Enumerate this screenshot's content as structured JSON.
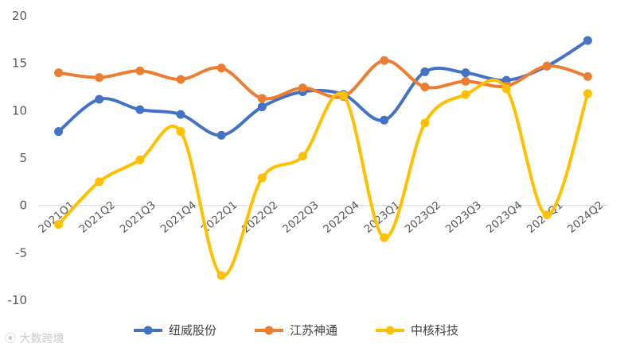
{
  "chart_data": {
    "type": "line",
    "title": "",
    "xlabel": "",
    "ylabel": "",
    "categories": [
      "2021Q1",
      "2021Q2",
      "2021Q3",
      "2021Q4",
      "2022Q1",
      "2022Q2",
      "2022Q3",
      "2022Q4",
      "2023Q1",
      "2023Q2",
      "2023Q3",
      "2023Q4",
      "2024Q1",
      "2024Q2"
    ],
    "ylim": [
      -10,
      20
    ],
    "yticks": [
      "20",
      "15",
      "10",
      "5",
      "0",
      "-5",
      "-10"
    ],
    "grid": "horizontal zero line only",
    "smooth": true,
    "legend_position": "bottom",
    "series": [
      {
        "name": "纽威股份",
        "color": "#4472C4",
        "values": [
          7.8,
          11.2,
          10.1,
          9.6,
          7.4,
          10.4,
          12.0,
          11.7,
          9.0,
          14.1,
          14.0,
          13.2,
          14.7,
          17.4
        ]
      },
      {
        "name": "江苏神通",
        "color": "#ED7D31",
        "values": [
          14.0,
          13.5,
          14.2,
          13.3,
          14.5,
          11.3,
          12.4,
          11.5,
          15.3,
          12.5,
          13.1,
          12.6,
          14.7,
          13.6
        ]
      },
      {
        "name": "中核科技",
        "color": "#FFC000",
        "values": [
          -2.0,
          2.5,
          4.8,
          7.8,
          -7.4,
          2.9,
          5.2,
          11.6,
          -3.4,
          8.7,
          11.7,
          12.3,
          -1.0,
          11.8
        ]
      }
    ]
  },
  "watermark": "大数跨境"
}
